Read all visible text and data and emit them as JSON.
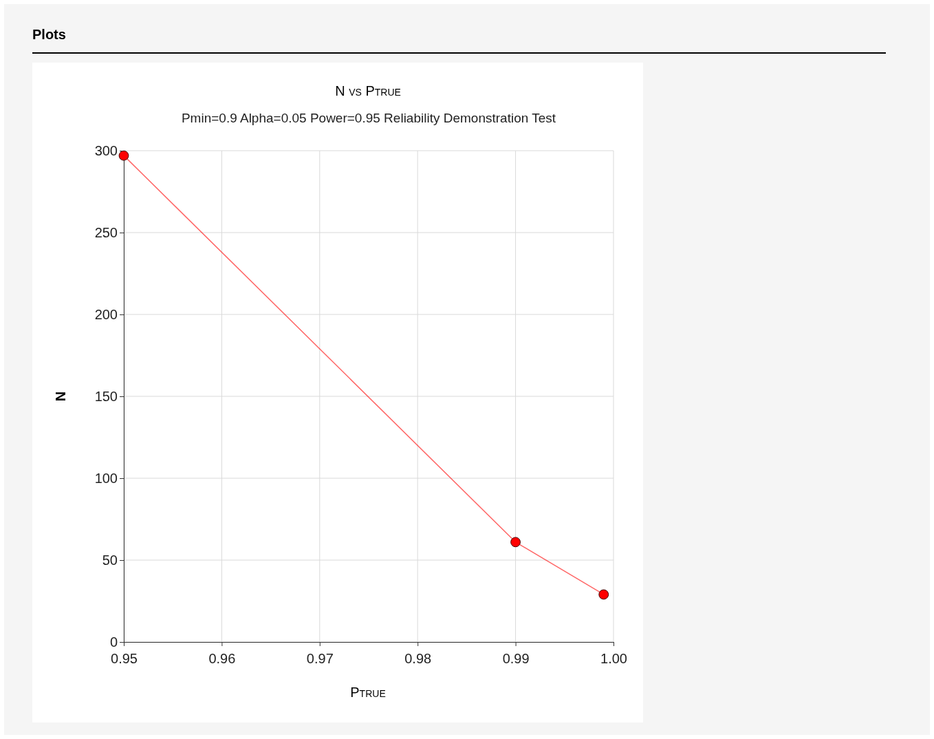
{
  "chart_data": {
    "type": "line",
    "title": "N vs Ptrue",
    "subtitle": "Pmin=0.9 Alpha=0.05 Power=0.95 Reliability Demonstration Test",
    "xlabel": "Ptrue",
    "ylabel": "N",
    "annotations": [
      "Plots"
    ],
    "x": [
      0.95,
      0.99,
      0.999
    ],
    "series": [
      {
        "color": "#ff0000",
        "values": [
          297,
          61,
          29
        ]
      }
    ],
    "xlim": [
      0.95,
      1.0
    ],
    "xticks": [
      0.95,
      0.96,
      0.97,
      0.98,
      0.99,
      {
        "value": 1.0,
        "label": "1.00"
      }
    ],
    "ylim": [
      0,
      300
    ],
    "yticks": [
      0,
      50,
      100,
      150,
      200,
      250,
      300
    ],
    "grid": true,
    "marker": "circle",
    "line_style": "solid"
  }
}
